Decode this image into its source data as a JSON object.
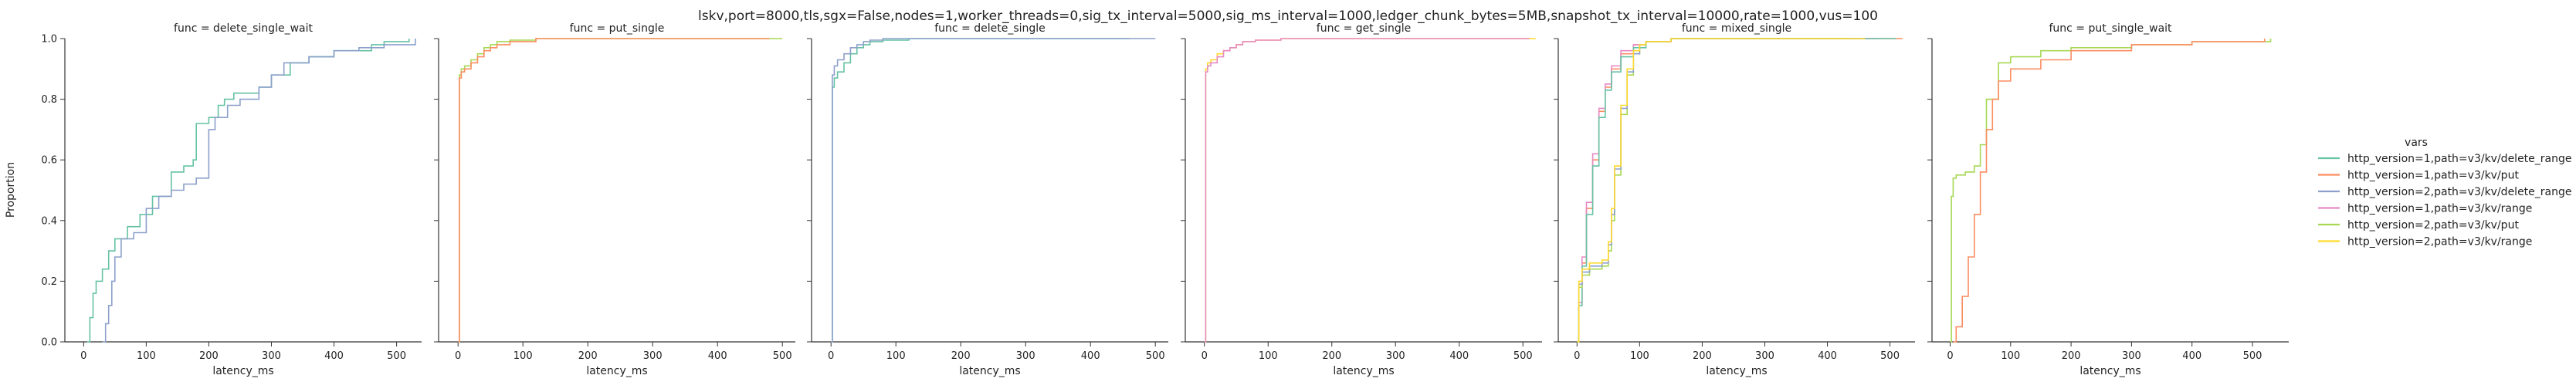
{
  "suptitle": "lskv,port=8000,tls,sgx=False,nodes=1,worker_threads=0,sig_tx_interval=5000,sig_ms_interval=1000,ledger_chunk_bytes=5MB,snapshot_tx_interval=10000,rate=1000,vus=100",
  "legend": {
    "title": "vars",
    "placement": "right",
    "entries": [
      {
        "label": "http_version=1,path=v3/kv/delete_range",
        "color": "#66c2a5"
      },
      {
        "label": "http_version=1,path=v3/kv/put",
        "color": "#fc8d62"
      },
      {
        "label": "http_version=2,path=v3/kv/delete_range",
        "color": "#8da0cb"
      },
      {
        "label": "http_version=1,path=v3/kv/range",
        "color": "#e78ac3"
      },
      {
        "label": "http_version=2,path=v3/kv/put",
        "color": "#a6d854"
      },
      {
        "label": "http_version=2,path=v3/kv/range",
        "color": "#ffd92f"
      }
    ]
  },
  "chart_data": [
    {
      "type": "line",
      "title": "func = delete_single_wait",
      "xlabel": "latency_ms",
      "ylabel": "Proportion",
      "xlim": [
        -30,
        540
      ],
      "ylim": [
        0,
        1
      ],
      "xticks": [
        0,
        100,
        200,
        300,
        400,
        500
      ],
      "yticks": [
        0.0,
        0.2,
        0.4,
        0.6,
        0.8,
        1.0
      ],
      "series": [
        {
          "color": "#66c2a5",
          "x": [
            5,
            10,
            15,
            20,
            30,
            40,
            50,
            70,
            90,
            110,
            140,
            160,
            175,
            180,
            200,
            215,
            225,
            240,
            260,
            280,
            300,
            330,
            360,
            400,
            430,
            460,
            480,
            520
          ],
          "y": [
            0,
            0.08,
            0.16,
            0.2,
            0.24,
            0.3,
            0.34,
            0.38,
            0.42,
            0.48,
            0.56,
            0.58,
            0.6,
            0.72,
            0.74,
            0.78,
            0.8,
            0.82,
            0.82,
            0.84,
            0.88,
            0.92,
            0.94,
            0.96,
            0.96,
            0.98,
            0.99,
            1.0
          ]
        },
        {
          "color": "#8da0cb",
          "x": [
            30,
            35,
            40,
            45,
            50,
            60,
            80,
            100,
            120,
            140,
            160,
            180,
            200,
            210,
            230,
            250,
            280,
            300,
            320,
            360,
            400,
            440,
            480,
            530
          ],
          "y": [
            0,
            0.06,
            0.12,
            0.2,
            0.28,
            0.34,
            0.36,
            0.44,
            0.48,
            0.5,
            0.52,
            0.54,
            0.7,
            0.74,
            0.78,
            0.8,
            0.84,
            0.88,
            0.92,
            0.94,
            0.96,
            0.97,
            0.98,
            1.0
          ]
        }
      ]
    },
    {
      "type": "line",
      "title": "func = put_single",
      "xlabel": "latency_ms",
      "ylabel": "",
      "xlim": [
        -30,
        520
      ],
      "ylim": [
        0,
        1
      ],
      "xticks": [
        0,
        100,
        200,
        300,
        400,
        500
      ],
      "yticks": [
        0.0,
        0.2,
        0.4,
        0.6,
        0.8,
        1.0
      ],
      "series": [
        {
          "color": "#a6d854",
          "x": [
            0,
            2,
            5,
            10,
            20,
            30,
            40,
            50,
            60,
            80,
            120,
            200,
            500
          ],
          "y": [
            0,
            0.88,
            0.9,
            0.91,
            0.93,
            0.95,
            0.97,
            0.98,
            0.99,
            0.995,
            1.0,
            1.0,
            1.0
          ]
        },
        {
          "color": "#fc8d62",
          "x": [
            0,
            2,
            5,
            10,
            20,
            30,
            40,
            50,
            60,
            80,
            120,
            200,
            480
          ],
          "y": [
            0,
            0.87,
            0.89,
            0.9,
            0.92,
            0.94,
            0.96,
            0.97,
            0.98,
            0.99,
            1.0,
            1.0,
            1.0
          ]
        }
      ]
    },
    {
      "type": "line",
      "title": "func = delete_single",
      "xlabel": "latency_ms",
      "ylabel": "",
      "xlim": [
        -30,
        520
      ],
      "ylim": [
        0,
        1
      ],
      "xticks": [
        0,
        100,
        200,
        300,
        400,
        500
      ],
      "yticks": [
        0.0,
        0.2,
        0.4,
        0.6,
        0.8,
        1.0
      ],
      "series": [
        {
          "color": "#66c2a5",
          "x": [
            0,
            2,
            5,
            10,
            20,
            30,
            40,
            50,
            60,
            80,
            120,
            200,
            460
          ],
          "y": [
            0,
            0.84,
            0.87,
            0.89,
            0.92,
            0.95,
            0.97,
            0.98,
            0.99,
            0.995,
            1.0,
            1.0,
            1.0
          ]
        },
        {
          "color": "#8da0cb",
          "x": [
            0,
            2,
            5,
            10,
            20,
            30,
            40,
            50,
            60,
            80,
            120,
            200,
            500
          ],
          "y": [
            0,
            0.88,
            0.91,
            0.93,
            0.95,
            0.97,
            0.98,
            0.99,
            0.995,
            1.0,
            1.0,
            1.0,
            1.0
          ]
        }
      ]
    },
    {
      "type": "line",
      "title": "func = get_single",
      "xlabel": "latency_ms",
      "ylabel": "",
      "xlim": [
        -30,
        530
      ],
      "ylim": [
        0,
        1
      ],
      "xticks": [
        0,
        100,
        200,
        300,
        400,
        500
      ],
      "yticks": [
        0.0,
        0.2,
        0.4,
        0.6,
        0.8,
        1.0
      ],
      "series": [
        {
          "color": "#ffd92f",
          "x": [
            0,
            2,
            5,
            10,
            20,
            30,
            40,
            50,
            60,
            80,
            120,
            200,
            520
          ],
          "y": [
            0,
            0.9,
            0.92,
            0.93,
            0.95,
            0.96,
            0.97,
            0.98,
            0.99,
            0.995,
            1.0,
            1.0,
            1.0
          ]
        },
        {
          "color": "#e78ac3",
          "x": [
            0,
            2,
            5,
            10,
            20,
            30,
            40,
            50,
            60,
            80,
            120,
            200,
            510
          ],
          "y": [
            0,
            0.89,
            0.91,
            0.92,
            0.94,
            0.96,
            0.97,
            0.98,
            0.99,
            0.995,
            1.0,
            1.0,
            1.0
          ]
        }
      ]
    },
    {
      "type": "line",
      "title": "func = mixed_single",
      "xlabel": "latency_ms",
      "ylabel": "",
      "xlim": [
        -30,
        540
      ],
      "ylim": [
        0,
        1
      ],
      "xticks": [
        0,
        100,
        200,
        300,
        400,
        500
      ],
      "yticks": [
        0.0,
        0.2,
        0.4,
        0.6,
        0.8,
        1.0
      ],
      "series": [
        {
          "color": "#fc8d62",
          "x": [
            0,
            3,
            8,
            15,
            25,
            35,
            45,
            55,
            70,
            90,
            110,
            150,
            200,
            300,
            520
          ],
          "y": [
            0,
            0.12,
            0.26,
            0.44,
            0.6,
            0.76,
            0.84,
            0.9,
            0.95,
            0.98,
            0.99,
            1.0,
            1.0,
            1.0,
            1.0
          ]
        },
        {
          "color": "#e78ac3",
          "x": [
            0,
            3,
            8,
            15,
            25,
            35,
            45,
            55,
            70,
            90,
            110,
            150,
            200,
            300,
            480
          ],
          "y": [
            0,
            0.13,
            0.28,
            0.46,
            0.62,
            0.77,
            0.85,
            0.91,
            0.96,
            0.98,
            0.99,
            1.0,
            1.0,
            1.0,
            1.0
          ]
        },
        {
          "color": "#66c2a5",
          "x": [
            0,
            3,
            8,
            15,
            25,
            35,
            45,
            55,
            70,
            90,
            110,
            150,
            200,
            300,
            510
          ],
          "y": [
            0,
            0.12,
            0.25,
            0.42,
            0.58,
            0.74,
            0.83,
            0.89,
            0.94,
            0.97,
            0.99,
            1.0,
            1.0,
            1.0,
            1.0
          ]
        },
        {
          "color": "#a6d854",
          "x": [
            0,
            3,
            8,
            20,
            40,
            50,
            55,
            60,
            70,
            80,
            90,
            100,
            110,
            150,
            250,
            440
          ],
          "y": [
            0,
            0.18,
            0.22,
            0.24,
            0.25,
            0.3,
            0.4,
            0.55,
            0.75,
            0.88,
            0.95,
            0.98,
            0.99,
            1.0,
            1.0,
            1.0
          ]
        },
        {
          "color": "#8da0cb",
          "x": [
            0,
            3,
            8,
            20,
            40,
            50,
            55,
            60,
            70,
            80,
            90,
            100,
            110,
            150,
            250,
            450
          ],
          "y": [
            0,
            0.19,
            0.23,
            0.25,
            0.26,
            0.32,
            0.42,
            0.57,
            0.77,
            0.89,
            0.95,
            0.98,
            0.99,
            1.0,
            1.0,
            1.0
          ]
        },
        {
          "color": "#ffd92f",
          "x": [
            0,
            3,
            8,
            20,
            40,
            50,
            55,
            60,
            70,
            80,
            90,
            100,
            110,
            150,
            250,
            460
          ],
          "y": [
            0,
            0.2,
            0.24,
            0.26,
            0.27,
            0.33,
            0.44,
            0.58,
            0.78,
            0.9,
            0.96,
            0.98,
            0.99,
            1.0,
            1.0,
            1.0
          ]
        }
      ]
    },
    {
      "type": "line",
      "title": "func = put_single_wait",
      "xlabel": "latency_ms",
      "ylabel": "",
      "xlim": [
        -30,
        560
      ],
      "ylim": [
        0,
        1
      ],
      "xticks": [
        0,
        100,
        200,
        300,
        400,
        500
      ],
      "yticks": [
        0.0,
        0.2,
        0.4,
        0.6,
        0.8,
        1.0
      ],
      "series": [
        {
          "color": "#a6d854",
          "x": [
            0,
            2,
            5,
            10,
            25,
            40,
            50,
            60,
            80,
            100,
            150,
            200,
            300,
            400,
            530
          ],
          "y": [
            0,
            0.48,
            0.54,
            0.55,
            0.56,
            0.58,
            0.65,
            0.8,
            0.92,
            0.94,
            0.96,
            0.97,
            0.98,
            0.99,
            1.0
          ]
        },
        {
          "color": "#fc8d62",
          "x": [
            5,
            10,
            20,
            30,
            40,
            50,
            60,
            70,
            80,
            100,
            150,
            200,
            300,
            400,
            520
          ],
          "y": [
            0,
            0.05,
            0.15,
            0.28,
            0.42,
            0.56,
            0.7,
            0.8,
            0.86,
            0.9,
            0.93,
            0.96,
            0.98,
            0.99,
            1.0
          ]
        }
      ]
    }
  ]
}
